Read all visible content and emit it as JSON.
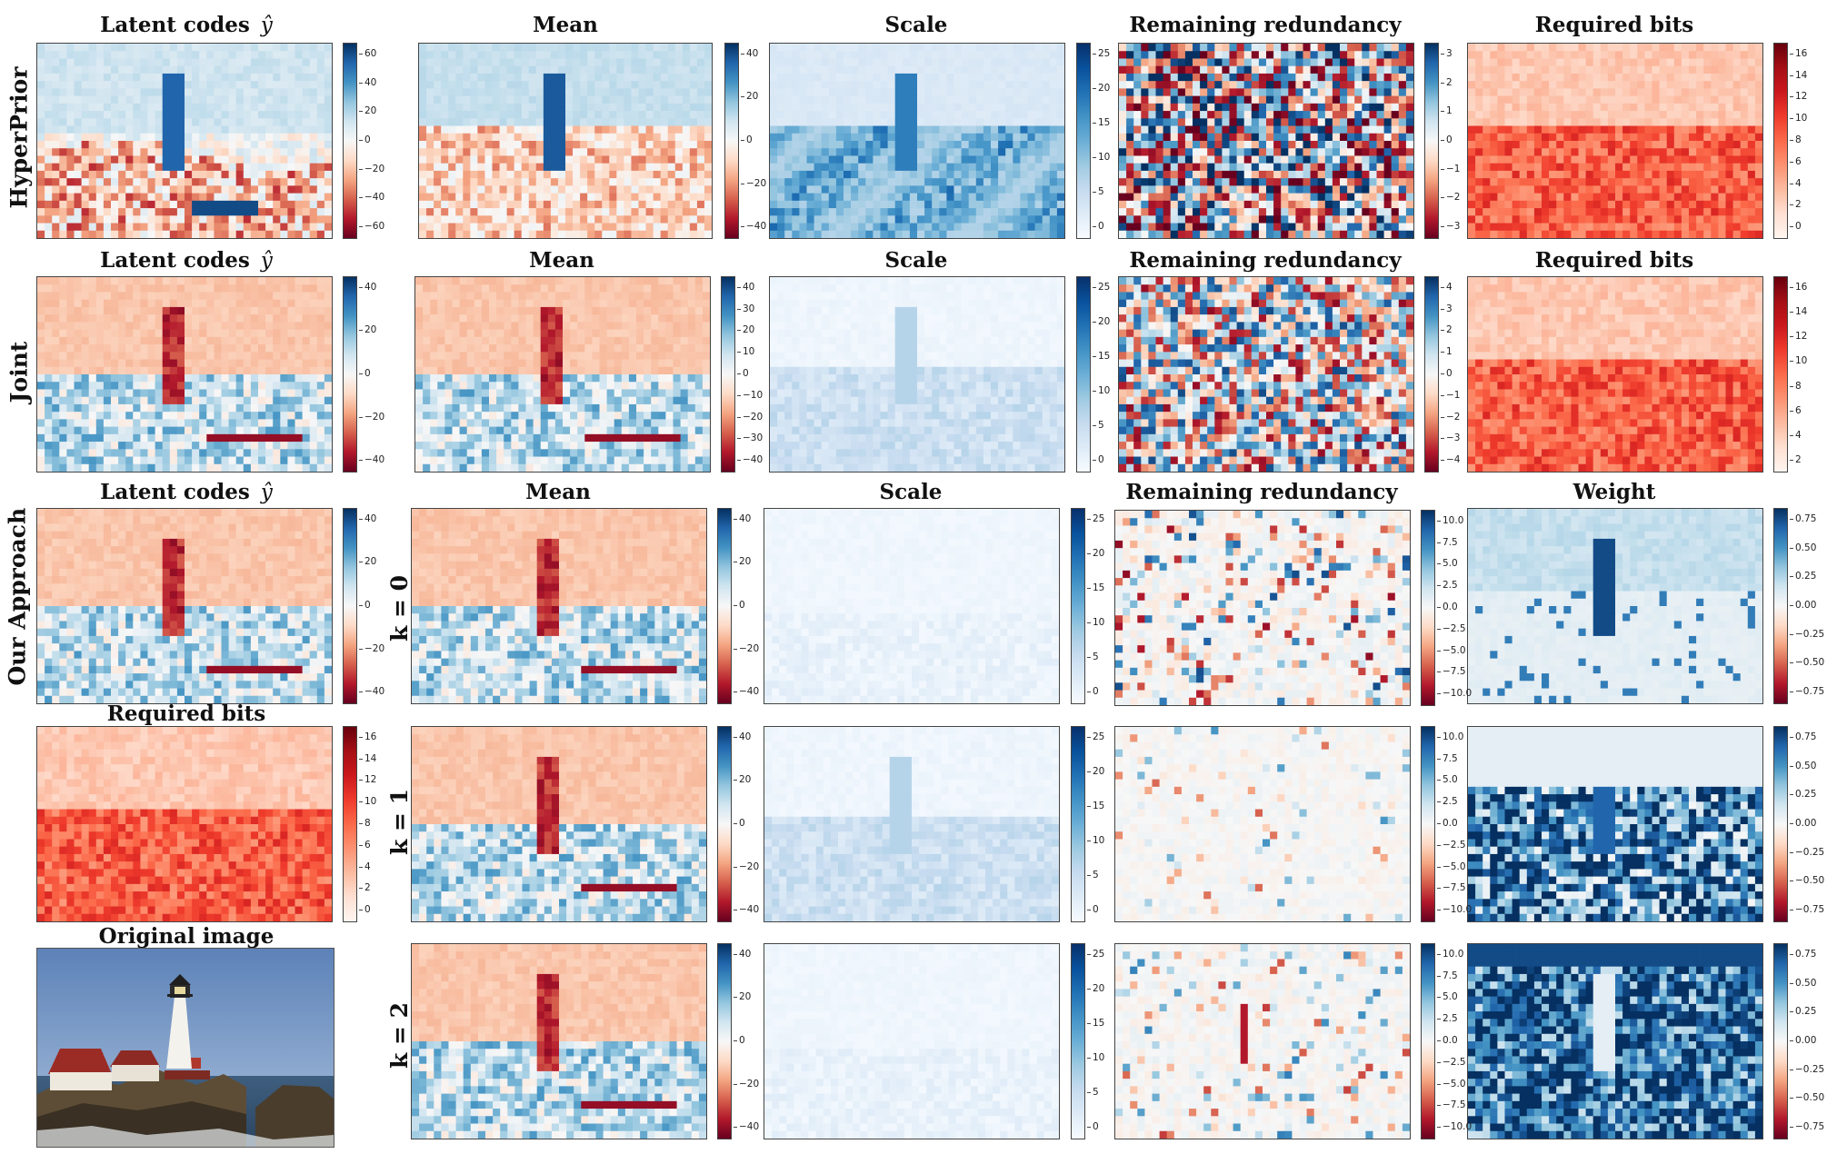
{
  "rows": {
    "hyperprior": "HyperPrior",
    "joint": "Joint",
    "ours": "Our Approach"
  },
  "k_labels": [
    "k = 0",
    "k = 1",
    "k = 2"
  ],
  "titles": {
    "latent": "Latent codes",
    "latent_symbol": "ŷ",
    "mean": "Mean",
    "scale": "Scale",
    "redundancy": "Remaining redundancy",
    "bits": "Required bits",
    "weight": "Weight",
    "original": "Original image"
  },
  "colormaps": {
    "diverging": "RdBu",
    "sequential_scale": "Blues",
    "sequential_bits": "Reds"
  },
  "ticks": {
    "hp_latent": [
      "60",
      "40",
      "20",
      "0",
      "−20",
      "−40",
      "−60"
    ],
    "hp_mean": [
      "40",
      "20",
      "0",
      "−20",
      "−40"
    ],
    "hp_scale": [
      "25",
      "20",
      "15",
      "10",
      "5",
      "0"
    ],
    "hp_red": [
      "3",
      "2",
      "1",
      "0",
      "−1",
      "−2",
      "−3"
    ],
    "hp_bits": [
      "16",
      "14",
      "12",
      "10",
      "8",
      "6",
      "4",
      "2",
      "0"
    ],
    "j_latent": [
      "40",
      "20",
      "0",
      "−20",
      "−40"
    ],
    "j_mean": [
      "40",
      "30",
      "20",
      "10",
      "0",
      "−10",
      "−20",
      "−30",
      "−40"
    ],
    "j_scale": [
      "25",
      "20",
      "15",
      "10",
      "5",
      "0"
    ],
    "j_red": [
      "4",
      "3",
      "2",
      "1",
      "0",
      "−1",
      "−2",
      "−3",
      "−4"
    ],
    "j_bits": [
      "16",
      "14",
      "12",
      "10",
      "8",
      "6",
      "4",
      "2"
    ],
    "o_latent": [
      "40",
      "20",
      "0",
      "−20",
      "−40"
    ],
    "o_mean": [
      "40",
      "20",
      "0",
      "−20",
      "−40"
    ],
    "scale25": [
      "25",
      "20",
      "15",
      "10",
      "5",
      "0"
    ],
    "red10": [
      "10.0",
      "7.5",
      "5.0",
      "2.5",
      "0.0",
      "−2.5",
      "−5.0",
      "−7.5",
      "−10.0"
    ],
    "weight": [
      "0.75",
      "0.50",
      "0.25",
      "0.00",
      "−0.25",
      "−0.50",
      "−0.75"
    ],
    "o_bits": [
      "16",
      "14",
      "12",
      "10",
      "8",
      "6",
      "4",
      "2",
      "0"
    ]
  }
}
